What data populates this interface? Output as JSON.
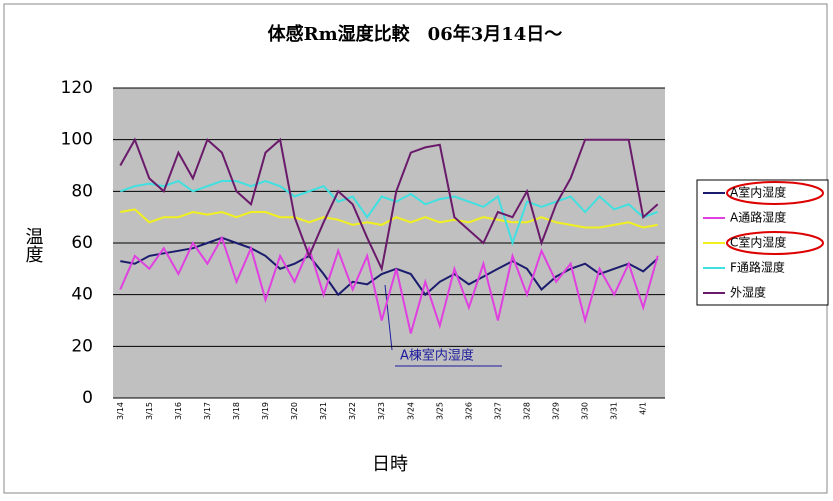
{
  "chart_data": {
    "type": "line",
    "title": "体感Rm湿度比較　06年3月14日～",
    "x_label": "日時",
    "y_label": "温度",
    "categories": [
      "3/14",
      null,
      "3/15",
      null,
      "3/16",
      null,
      "3/17",
      null,
      "3/18",
      null,
      "3/19",
      null,
      "3/20",
      null,
      "3/21",
      null,
      "3/22",
      null,
      "3/23",
      null,
      "3/24",
      null,
      "3/25",
      null,
      "3/26",
      null,
      "3/27",
      null,
      "3/28",
      null,
      "3/29",
      null,
      "3/30",
      null,
      "3/31",
      null,
      "4/1",
      null
    ],
    "series": [
      {
        "name": "A室内湿度",
        "color": "#1c1c6e",
        "values": [
          53,
          52,
          55,
          56,
          57,
          58,
          60,
          62,
          60,
          58,
          55,
          50,
          52,
          55,
          48,
          40,
          45,
          44,
          48,
          50,
          48,
          40,
          45,
          48,
          44,
          47,
          50,
          53,
          50,
          42,
          47,
          50,
          52,
          48,
          50,
          52,
          49,
          54
        ]
      },
      {
        "name": "A通路湿度",
        "color": "#e040e0",
        "values": [
          42,
          55,
          50,
          58,
          48,
          60,
          52,
          62,
          45,
          58,
          38,
          55,
          45,
          58,
          40,
          57,
          42,
          55,
          30,
          50,
          25,
          45,
          28,
          50,
          35,
          52,
          30,
          55,
          40,
          57,
          45,
          52,
          30,
          50,
          40,
          52,
          35,
          55
        ]
      },
      {
        "name": "C室内湿度",
        "color": "#f0f020",
        "values": [
          72,
          73,
          68,
          70,
          70,
          72,
          71,
          72,
          70,
          72,
          72,
          70,
          70,
          68,
          70,
          69,
          67,
          68,
          67,
          70,
          68,
          70,
          68,
          69,
          68,
          70,
          69,
          68,
          68,
          70,
          68,
          67,
          66,
          66,
          67,
          68,
          66,
          67
        ]
      },
      {
        "name": "F通路湿度",
        "color": "#40e0e0",
        "values": [
          80,
          82,
          83,
          82,
          84,
          80,
          82,
          84,
          84,
          82,
          84,
          82,
          78,
          80,
          82,
          76,
          78,
          70,
          78,
          76,
          79,
          75,
          77,
          78,
          76,
          74,
          78,
          60,
          76,
          74,
          76,
          78,
          72,
          78,
          73,
          75,
          70,
          72
        ]
      },
      {
        "name": "外湿度",
        "color": "#6a1a6a",
        "values": [
          90,
          100,
          85,
          80,
          95,
          85,
          100,
          95,
          80,
          75,
          95,
          100,
          70,
          55,
          68,
          80,
          75,
          62,
          50,
          80,
          95,
          97,
          98,
          70,
          65,
          60,
          72,
          70,
          80,
          60,
          75,
          85,
          100,
          100,
          100,
          100,
          70,
          75
        ]
      }
    ],
    "ylim": [
      0,
      120
    ],
    "yticks": [
      0,
      20,
      40,
      60,
      80,
      100,
      120
    ],
    "grid": true,
    "legend": "right",
    "annotations": [
      {
        "text": "A棟室内湿度"
      }
    ]
  }
}
